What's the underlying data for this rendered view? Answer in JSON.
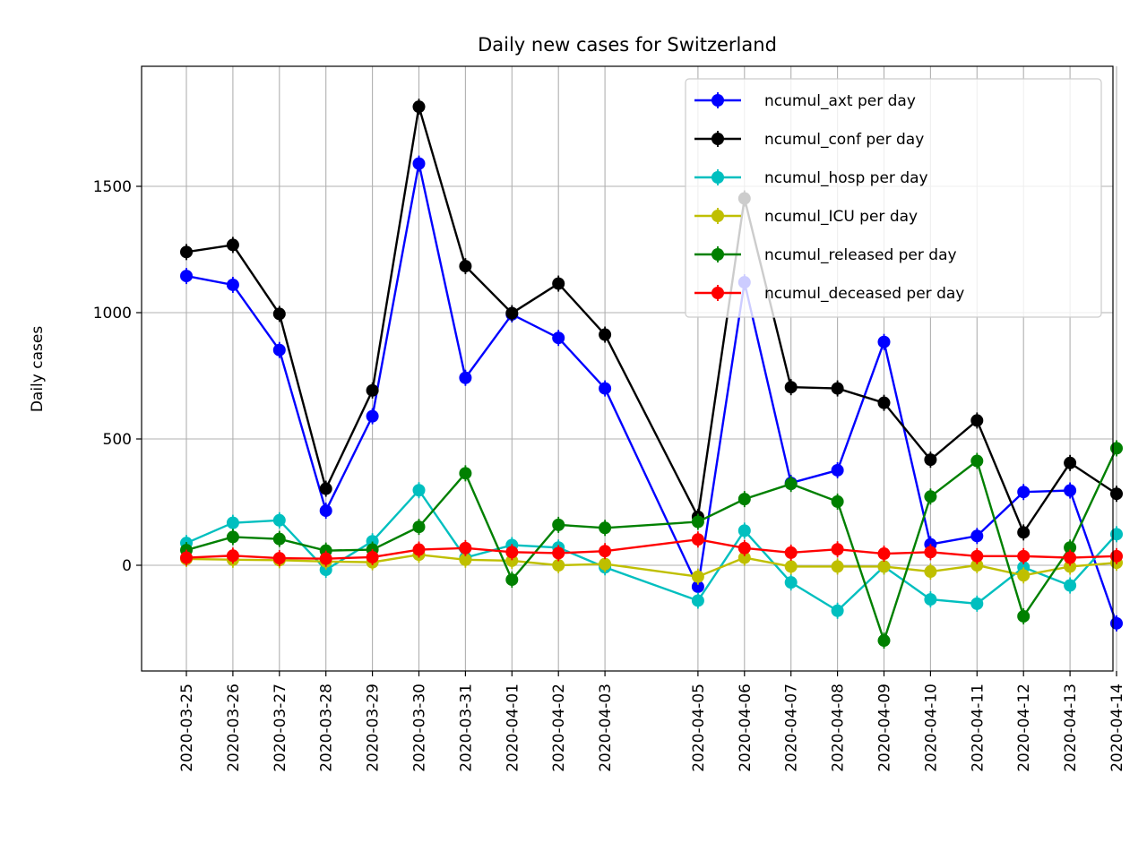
{
  "chart_data": {
    "type": "line",
    "title": "Daily new cases for Switzerland",
    "xlabel": "",
    "ylabel": "Daily cases",
    "x": [
      "2020-03-25",
      "2020-03-26",
      "2020-03-27",
      "2020-03-28",
      "2020-03-29",
      "2020-03-30",
      "2020-03-31",
      "2020-04-01",
      "2020-04-02",
      "2020-04-03",
      "2020-04-04",
      "2020-04-05",
      "2020-04-06",
      "2020-04-07",
      "2020-04-08",
      "2020-04-09",
      "2020-04-10",
      "2020-04-11",
      "2020-04-12",
      "2020-04-13",
      "2020-04-14"
    ],
    "x_tick_labels": [
      "2020-03-25",
      "2020-03-26",
      "2020-03-27",
      "2020-03-28",
      "2020-03-29",
      "2020-03-30",
      "2020-03-31",
      "2020-04-01",
      "2020-04-02",
      "2020-04-03",
      "2020-04-05",
      "2020-04-06",
      "2020-04-07",
      "2020-04-08",
      "2020-04-09",
      "2020-04-10",
      "2020-04-11",
      "2020-04-12",
      "2020-04-13",
      "2020-04-14"
    ],
    "yticks": [
      0,
      500,
      1000,
      1500
    ],
    "ylim": [
      -420,
      1970
    ],
    "grid": true,
    "legend_position": "top-right",
    "series": [
      {
        "name": "ncumul_axt per day",
        "color": "#0000ff",
        "values": [
          1145,
          1110,
          852,
          216,
          590,
          1590,
          742,
          993,
          900,
          700,
          null,
          -85,
          1120,
          326,
          376,
          884,
          83,
          116,
          290,
          296,
          -230
        ]
      },
      {
        "name": "ncumul_conf per day",
        "color": "#000000",
        "values": [
          1240,
          1268,
          995,
          303,
          692,
          1815,
          1184,
          998,
          1115,
          913,
          null,
          192,
          1452,
          705,
          700,
          643,
          418,
          573,
          130,
          405,
          283
        ]
      },
      {
        "name": "ncumul_hosp per day",
        "color": "#00bfbf",
        "values": [
          88,
          168,
          178,
          -18,
          95,
          297,
          30,
          80,
          70,
          -8,
          null,
          -140,
          137,
          -68,
          -180,
          -5,
          -135,
          -152,
          -8,
          -80,
          123
        ]
      },
      {
        "name": "ncumul_ICU per day",
        "color": "#bfbf00",
        "values": [
          25,
          22,
          20,
          15,
          12,
          42,
          22,
          18,
          0,
          5,
          null,
          -45,
          30,
          -5,
          -5,
          -5,
          -25,
          0,
          -40,
          -5,
          10
        ]
      },
      {
        "name": "ncumul_released per day",
        "color": "#008000",
        "values": [
          60,
          112,
          104,
          58,
          62,
          152,
          364,
          -57,
          160,
          148,
          null,
          172,
          262,
          322,
          252,
          -298,
          272,
          413,
          -202,
          70,
          463
        ]
      },
      {
        "name": "ncumul_deceased per day",
        "color": "#ff0000",
        "values": [
          30,
          38,
          28,
          26,
          32,
          62,
          68,
          52,
          48,
          56,
          null,
          102,
          68,
          50,
          63,
          46,
          52,
          36,
          36,
          30,
          36
        ]
      }
    ]
  }
}
